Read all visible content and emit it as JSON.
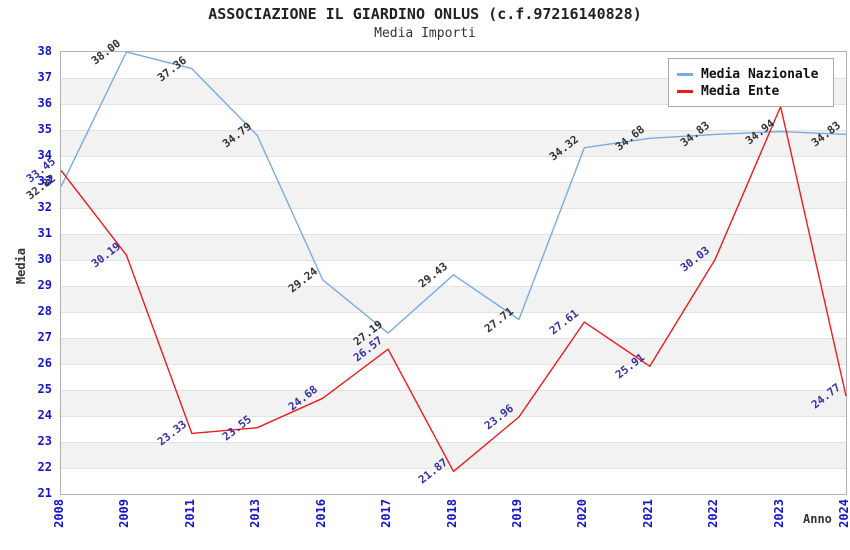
{
  "header": {
    "title": "ASSOCIAZIONE IL GIARDINO ONLUS (c.f.97216140828)",
    "subtitle": "Media Importi"
  },
  "chart_data": {
    "type": "line",
    "x_categories": [
      "2008",
      "2009",
      "2011",
      "2013",
      "2016",
      "2017",
      "2018",
      "2019",
      "2020",
      "2021",
      "2022",
      "2023",
      "2024"
    ],
    "series": [
      {
        "name": "Media Nazionale",
        "color": "#7aabdf",
        "label_color": "#333333",
        "values": [
          32.82,
          38.0,
          37.36,
          34.79,
          29.24,
          27.19,
          29.43,
          27.71,
          34.32,
          34.68,
          34.83,
          34.94,
          34.83
        ],
        "labels": [
          "32.82",
          "38.00",
          "37.36",
          "34.79",
          "29.24",
          "27.19",
          "29.43",
          "27.71",
          "34.32",
          "34.68",
          "34.83",
          "34.94",
          "34.83"
        ]
      },
      {
        "name": "Media Ente",
        "color": "#ee1c1c",
        "label_color": "#3333a6",
        "values": [
          33.45,
          30.19,
          23.33,
          23.55,
          24.68,
          26.57,
          21.87,
          23.96,
          27.61,
          25.91,
          30.03,
          35.9,
          24.77
        ],
        "labels": [
          "33.45",
          "30.19",
          "23.33",
          "23.55",
          "24.68",
          "26.57",
          "21.87",
          "23.96",
          "27.61",
          "25.91",
          "30.03",
          null,
          "24.77"
        ]
      }
    ],
    "title": "ASSOCIAZIONE IL GIARDINO ONLUS (c.f.97216140828)",
    "subtitle": "Media Importi",
    "xlabel": "Anno",
    "ylabel": "Media",
    "ylim": [
      21,
      38
    ],
    "ytick_step": 1,
    "grid": "horizontal",
    "background_bands": "alternating gray on even-to-odd unit intervals",
    "legend_position": "top-right"
  },
  "colors": {
    "axis_tick_text": "#1515cc",
    "band_fill": "#f2f2f2",
    "gridline": "#e3e3e3",
    "plot_border": "#b0b0b0"
  }
}
